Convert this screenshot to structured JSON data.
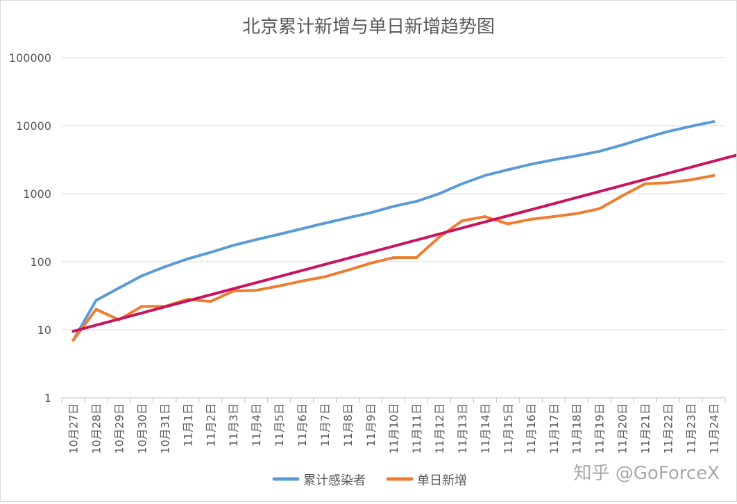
{
  "chart_data": {
    "type": "line",
    "title": "北京累计新增与单日新增趋势图",
    "xlabel": "",
    "ylabel": "",
    "yscale": "log",
    "ylim": [
      1,
      100000
    ],
    "y_ticks": [
      "1",
      "10",
      "100",
      "1000",
      "10000",
      "100000"
    ],
    "grid": true,
    "legend_position": "bottom",
    "categories": [
      "10月27日",
      "10月28日",
      "10月29日",
      "10月30日",
      "10月31日",
      "11月1日",
      "11月2日",
      "11月3日",
      "11月4日",
      "11月5日",
      "11月6日",
      "11月7日",
      "11月8日",
      "11月9日",
      "11月10日",
      "11月11日",
      "11月12日",
      "11月13日",
      "11月14日",
      "11月15日",
      "11月16日",
      "11月17日",
      "11月18日",
      "11月19日",
      "11月20日",
      "11月21日",
      "11月22日",
      "11月23日",
      "11月24日"
    ],
    "series": [
      {
        "name": "累计感染者",
        "color": "#5b9bd5",
        "values": [
          7,
          27,
          41,
          62,
          84,
          110,
          137,
          174,
          211,
          253,
          305,
          368,
          440,
          525,
          650,
          770,
          1000,
          1400,
          1850,
          2250,
          2700,
          3150,
          3600,
          4200,
          5200,
          6600,
          8200,
          9800,
          11500
        ]
      },
      {
        "name": "单日新增",
        "color": "#ed7d31",
        "values": [
          7,
          20,
          14,
          22,
          22,
          28,
          26,
          37,
          38,
          44,
          52,
          60,
          75,
          95,
          115,
          115,
          230,
          400,
          460,
          360,
          420,
          460,
          510,
          600,
          930,
          1400,
          1450,
          1600,
          1850
        ]
      }
    ],
    "trendline": {
      "color": "#c8145f",
      "x_start": "10月27日",
      "y_start": 9.5,
      "slope_per_day": 0.0893
    }
  },
  "watermark": "知乎 @GoForceX"
}
